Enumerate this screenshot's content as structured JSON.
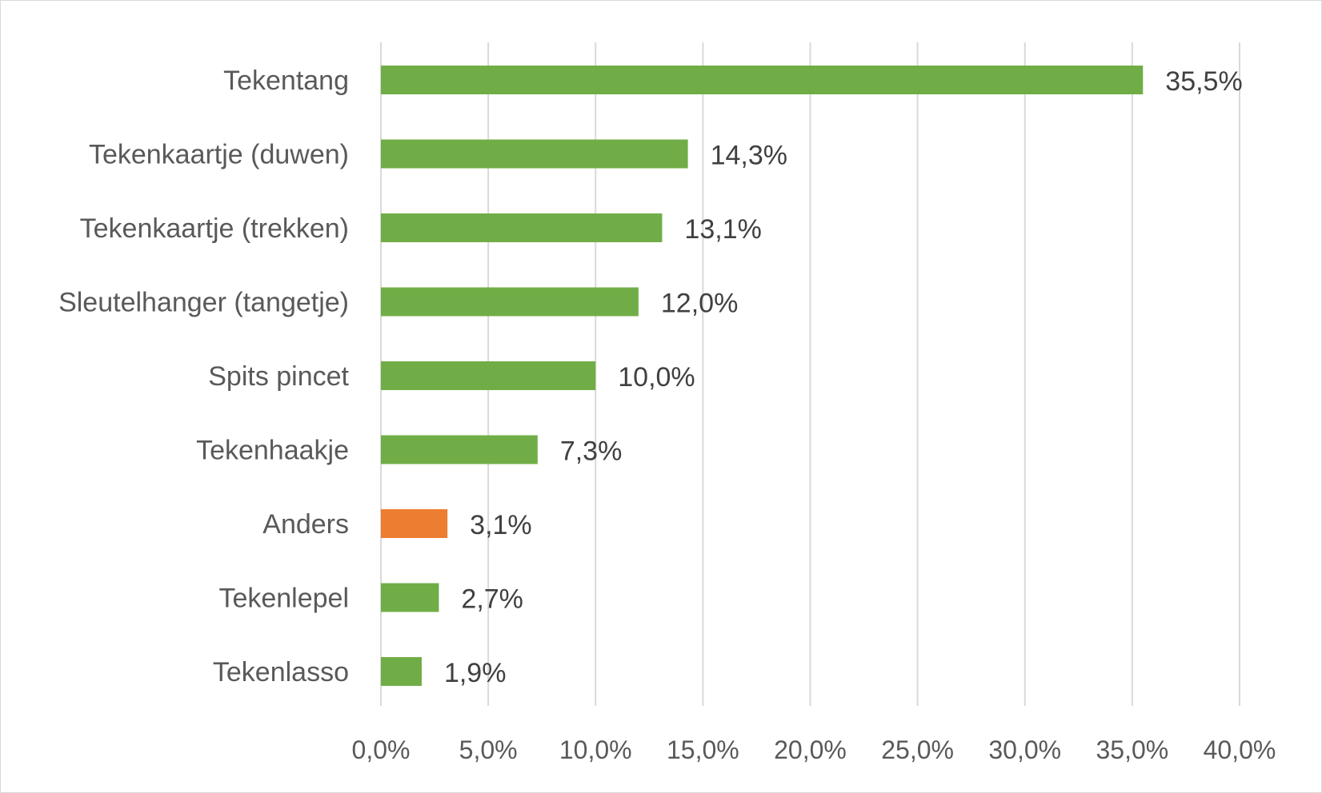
{
  "chart_data": {
    "type": "bar",
    "orientation": "horizontal",
    "title": "",
    "xlabel": "",
    "ylabel": "",
    "categories": [
      "Tekentang",
      "Tekenkaartje (duwen)",
      "Tekenkaartje (trekken)",
      "Sleutelhanger (tangetje)",
      "Spits pincet",
      "Tekenhaakje",
      "Anders",
      "Tekenlepel",
      "Tekenlasso"
    ],
    "values": [
      35.5,
      14.3,
      13.1,
      12.0,
      10.0,
      7.3,
      3.1,
      2.7,
      1.9
    ],
    "value_labels": [
      "35,5%",
      "14,3%",
      "13,1%",
      "12,0%",
      "10,0%",
      "7,3%",
      "3,1%",
      "2,7%",
      "1,9%"
    ],
    "bar_colors": [
      "#70ad47",
      "#70ad47",
      "#70ad47",
      "#70ad47",
      "#70ad47",
      "#70ad47",
      "#ed7d31",
      "#70ad47",
      "#70ad47"
    ],
    "xlim": [
      0,
      40
    ],
    "xticks": [
      0,
      5,
      10,
      15,
      20,
      25,
      30,
      35,
      40
    ],
    "xtick_labels": [
      "0,0%",
      "5,0%",
      "10,0%",
      "15,0%",
      "20,0%",
      "25,0%",
      "30,0%",
      "35,0%",
      "40,0%"
    ],
    "grid": "vertical",
    "legend": "none"
  }
}
